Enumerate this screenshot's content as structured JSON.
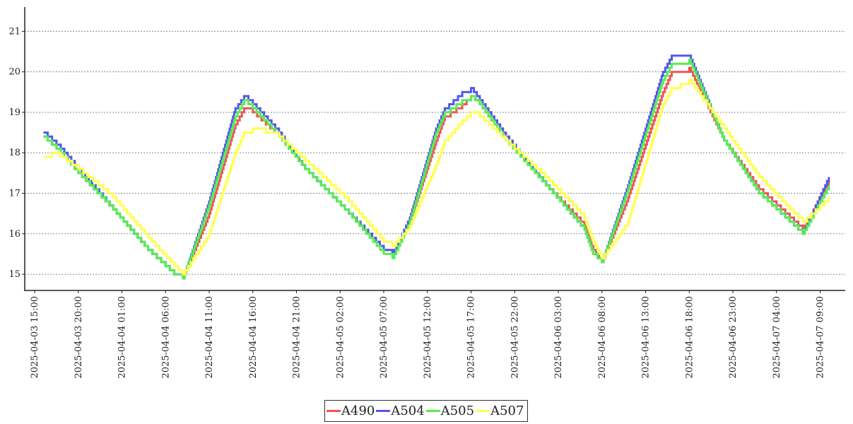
{
  "chart_data": {
    "type": "line",
    "step": true,
    "title": "",
    "xlabel": "",
    "ylabel": "",
    "ylim": [
      14.6,
      21.6
    ],
    "yticks": [
      15,
      16,
      17,
      18,
      19,
      20,
      21
    ],
    "grid": "horizontal-dotted",
    "legend_position": "bottom-center",
    "x_tick_labels": [
      "2025-04-03 15:00",
      "2025-04-03 20:00",
      "2025-04-04 01:00",
      "2025-04-04 06:00",
      "2025-04-04 11:00",
      "2025-04-04 16:00",
      "2025-04-04 21:00",
      "2025-04-05 02:00",
      "2025-04-05 07:00",
      "2025-04-05 12:00",
      "2025-04-05 17:00",
      "2025-04-05 22:00",
      "2025-04-06 03:00",
      "2025-04-06 08:00",
      "2025-04-06 13:00",
      "2025-04-06 18:00",
      "2025-04-06 23:00",
      "2025-04-07 04:00",
      "2025-04-07 09:00"
    ],
    "x": [
      "2025-04-03 16:00",
      "2025-04-03 17:00",
      "2025-04-03 18:00",
      "2025-04-03 20:00",
      "2025-04-04 00:00",
      "2025-04-04 04:00",
      "2025-04-04 07:00",
      "2025-04-04 08:00",
      "2025-04-04 11:00",
      "2025-04-04 14:00",
      "2025-04-04 15:00",
      "2025-04-04 16:00",
      "2025-04-04 19:00",
      "2025-04-04 22:00",
      "2025-04-05 03:00",
      "2025-04-05 07:00",
      "2025-04-05 08:00",
      "2025-04-05 10:00",
      "2025-04-05 13:00",
      "2025-04-05 14:00",
      "2025-04-05 16:00",
      "2025-04-05 17:00",
      "2025-04-05 18:00",
      "2025-04-05 21:00",
      "2025-04-06 02:00",
      "2025-04-06 06:00",
      "2025-04-06 07:00",
      "2025-04-06 08:00",
      "2025-04-06 11:00",
      "2025-04-06 15:00",
      "2025-04-06 16:00",
      "2025-04-06 18:00",
      "2025-04-06 22:00",
      "2025-04-07 02:00",
      "2025-04-07 06:00",
      "2025-04-07 07:00",
      "2025-04-07 10:00"
    ],
    "series": [
      {
        "name": "A490",
        "color": "#ee5555",
        "values": [
          18.4,
          18.2,
          18.0,
          17.5,
          16.6,
          15.6,
          15.0,
          14.9,
          16.5,
          18.7,
          19.1,
          19.0,
          18.4,
          17.6,
          16.5,
          15.6,
          15.5,
          16.3,
          18.3,
          18.9,
          19.2,
          19.4,
          19.2,
          18.3,
          17.1,
          16.2,
          15.6,
          15.3,
          16.9,
          19.5,
          20.0,
          20.1,
          18.3,
          17.1,
          16.3,
          16.1,
          17.3
        ]
      },
      {
        "name": "A504",
        "color": "#5555ee",
        "values": [
          18.5,
          18.3,
          18.1,
          17.6,
          16.6,
          15.6,
          15.0,
          14.9,
          16.8,
          19.1,
          19.4,
          19.2,
          18.5,
          17.6,
          16.5,
          15.6,
          15.5,
          16.4,
          18.6,
          19.1,
          19.5,
          19.6,
          19.3,
          18.4,
          17.1,
          16.1,
          15.5,
          15.3,
          17.2,
          20.0,
          20.4,
          20.4,
          18.3,
          17.0,
          16.2,
          16.0,
          17.4
        ]
      },
      {
        "name": "A505",
        "color": "#55ee55",
        "values": [
          18.4,
          18.2,
          18.0,
          17.5,
          16.6,
          15.6,
          15.0,
          14.9,
          16.7,
          18.9,
          19.3,
          19.1,
          18.4,
          17.6,
          16.5,
          15.5,
          15.4,
          16.3,
          18.5,
          19.0,
          19.3,
          19.4,
          19.2,
          18.3,
          17.1,
          16.1,
          15.5,
          15.3,
          17.1,
          19.8,
          20.2,
          20.3,
          18.3,
          17.0,
          16.2,
          16.0,
          17.2
        ]
      },
      {
        "name": "A507",
        "color": "#ffff55",
        "values": [
          17.9,
          18.0,
          17.9,
          17.6,
          16.9,
          15.9,
          15.2,
          15.0,
          16.0,
          18.0,
          18.5,
          18.6,
          18.4,
          17.8,
          16.8,
          15.8,
          15.7,
          16.2,
          17.7,
          18.3,
          18.8,
          19.0,
          18.9,
          18.3,
          17.3,
          16.4,
          15.8,
          15.4,
          16.3,
          19.2,
          19.6,
          19.8,
          18.6,
          17.4,
          16.5,
          16.3,
          16.9
        ]
      }
    ]
  }
}
